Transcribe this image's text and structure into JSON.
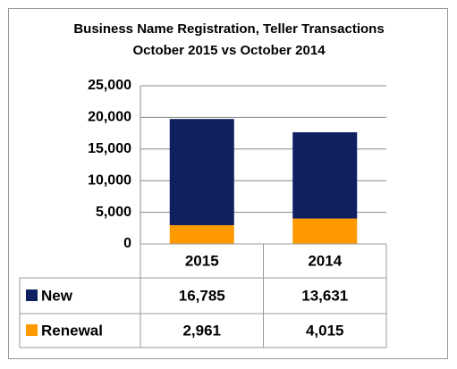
{
  "chart_data": {
    "type": "bar",
    "stacked": true,
    "title": "Business Name Registration, Teller Transactions",
    "subtitle": "October 2015 vs October 2014",
    "categories": [
      "2015",
      "2014"
    ],
    "series": [
      {
        "name": "New",
        "color": "#0f1f5f",
        "values": [
          16785,
          13631
        ],
        "value_labels": [
          "16,785",
          "13,631"
        ]
      },
      {
        "name": "Renewal",
        "color": "#ff9900",
        "values": [
          2961,
          4015
        ],
        "value_labels": [
          "2,961",
          "4,015"
        ]
      }
    ],
    "ylim": [
      0,
      25000
    ],
    "yticks": [
      0,
      {
        "value": 5000,
        "label": "5,000"
      },
      {
        "value": 10000,
        "label": "10,000"
      },
      {
        "value": 15000,
        "label": "15,000"
      },
      {
        "value": 20000,
        "label": "20,000"
      },
      {
        "value": 25000,
        "label": "25,000"
      }
    ],
    "grid": true,
    "data_table": true
  }
}
